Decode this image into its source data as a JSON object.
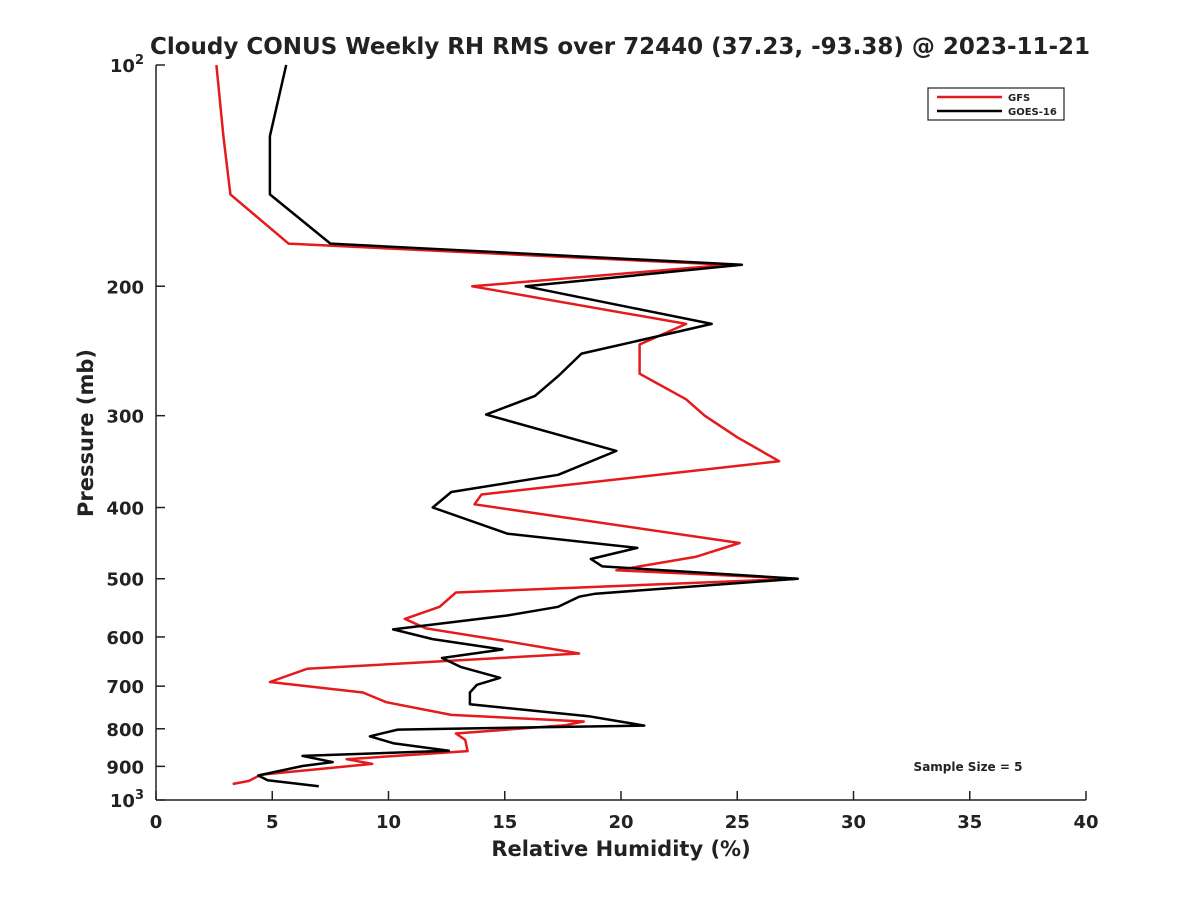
{
  "chart_data": {
    "type": "line",
    "title": "Cloudy CONUS Weekly RH RMS over 72440 (37.23, -93.38) @ 2023-11-21",
    "xlabel": "Relative Humidity (%)",
    "ylabel": "Pressure (mb)",
    "xlim": [
      0,
      40
    ],
    "ylim": [
      100,
      1000
    ],
    "y_scale": "log",
    "y_reversed": true,
    "grid": false,
    "legend_position": "top-right",
    "x_ticks": [
      "0",
      "5",
      "10",
      "15",
      "20",
      "25",
      "30",
      "35",
      "40"
    ],
    "y_ticks": [
      {
        "value": 100,
        "base": "10",
        "exp": "2",
        "text": ""
      },
      {
        "value": 200,
        "base": "",
        "exp": "",
        "text": "200"
      },
      {
        "value": 300,
        "base": "",
        "exp": "",
        "text": "300"
      },
      {
        "value": 400,
        "base": "",
        "exp": "",
        "text": "400"
      },
      {
        "value": 500,
        "base": "",
        "exp": "",
        "text": "500"
      },
      {
        "value": 600,
        "base": "",
        "exp": "",
        "text": "600"
      },
      {
        "value": 700,
        "base": "",
        "exp": "",
        "text": "700"
      },
      {
        "value": 800,
        "base": "",
        "exp": "",
        "text": "800"
      },
      {
        "value": 900,
        "base": "",
        "exp": "",
        "text": "900"
      },
      {
        "value": 1000,
        "base": "10",
        "exp": "3",
        "text": ""
      }
    ],
    "annotation": "Sample Size = 5",
    "series": [
      {
        "name": "GFS",
        "color": "#e41a1c",
        "points": [
          [
            2.6,
            100
          ],
          [
            2.9,
            125
          ],
          [
            3.2,
            150
          ],
          [
            5.7,
            175
          ],
          [
            24.6,
            187
          ],
          [
            13.6,
            200
          ],
          [
            22.8,
            225
          ],
          [
            20.8,
            240
          ],
          [
            20.8,
            263
          ],
          [
            22.8,
            285
          ],
          [
            23.6,
            300
          ],
          [
            25.0,
            321
          ],
          [
            26.8,
            346
          ],
          [
            14.0,
            384
          ],
          [
            13.7,
            396
          ],
          [
            25.1,
            447
          ],
          [
            23.2,
            467
          ],
          [
            19.8,
            487
          ],
          [
            27.6,
            500
          ],
          [
            12.9,
            522
          ],
          [
            12.2,
            546
          ],
          [
            10.7,
            567
          ],
          [
            11.6,
            584
          ],
          [
            15.2,
            609
          ],
          [
            18.2,
            632
          ],
          [
            6.5,
            663
          ],
          [
            4.9,
            691
          ],
          [
            8.9,
            714
          ],
          [
            9.9,
            736
          ],
          [
            12.7,
            766
          ],
          [
            18.4,
            782
          ],
          [
            17.6,
            791
          ],
          [
            12.9,
            812
          ],
          [
            13.3,
            828
          ],
          [
            13.4,
            858
          ],
          [
            8.2,
            880
          ],
          [
            9.3,
            893
          ],
          [
            4.5,
            924
          ],
          [
            4.0,
            942
          ],
          [
            3.3,
            951
          ]
        ]
      },
      {
        "name": "GOES-16",
        "color": "#000000",
        "points": [
          [
            5.6,
            100
          ],
          [
            4.9,
            125
          ],
          [
            4.9,
            150
          ],
          [
            7.5,
            175
          ],
          [
            25.2,
            187
          ],
          [
            15.9,
            200
          ],
          [
            23.9,
            225
          ],
          [
            22.6,
            230
          ],
          [
            18.3,
            247
          ],
          [
            17.3,
            265
          ],
          [
            16.3,
            282
          ],
          [
            14.2,
            299
          ],
          [
            19.8,
            335
          ],
          [
            17.3,
            361
          ],
          [
            12.7,
            381
          ],
          [
            11.9,
            400
          ],
          [
            15.1,
            434
          ],
          [
            20.7,
            454
          ],
          [
            18.7,
            470
          ],
          [
            19.2,
            481
          ],
          [
            27.6,
            500
          ],
          [
            18.9,
            524
          ],
          [
            18.2,
            529
          ],
          [
            17.3,
            546
          ],
          [
            15.1,
            561
          ],
          [
            10.2,
            586
          ],
          [
            11.9,
            604
          ],
          [
            14.9,
            624
          ],
          [
            12.3,
            641
          ],
          [
            13.1,
            659
          ],
          [
            14.8,
            682
          ],
          [
            13.8,
            697
          ],
          [
            13.5,
            714
          ],
          [
            13.5,
            741
          ],
          [
            18.6,
            769
          ],
          [
            21.0,
            792
          ],
          [
            10.4,
            802
          ],
          [
            9.2,
            819
          ],
          [
            10.2,
            837
          ],
          [
            12.6,
            857
          ],
          [
            6.3,
            871
          ],
          [
            7.6,
            888
          ],
          [
            6.3,
            899
          ],
          [
            4.4,
            926
          ],
          [
            4.8,
            940
          ],
          [
            7.0,
            958
          ]
        ]
      }
    ]
  }
}
